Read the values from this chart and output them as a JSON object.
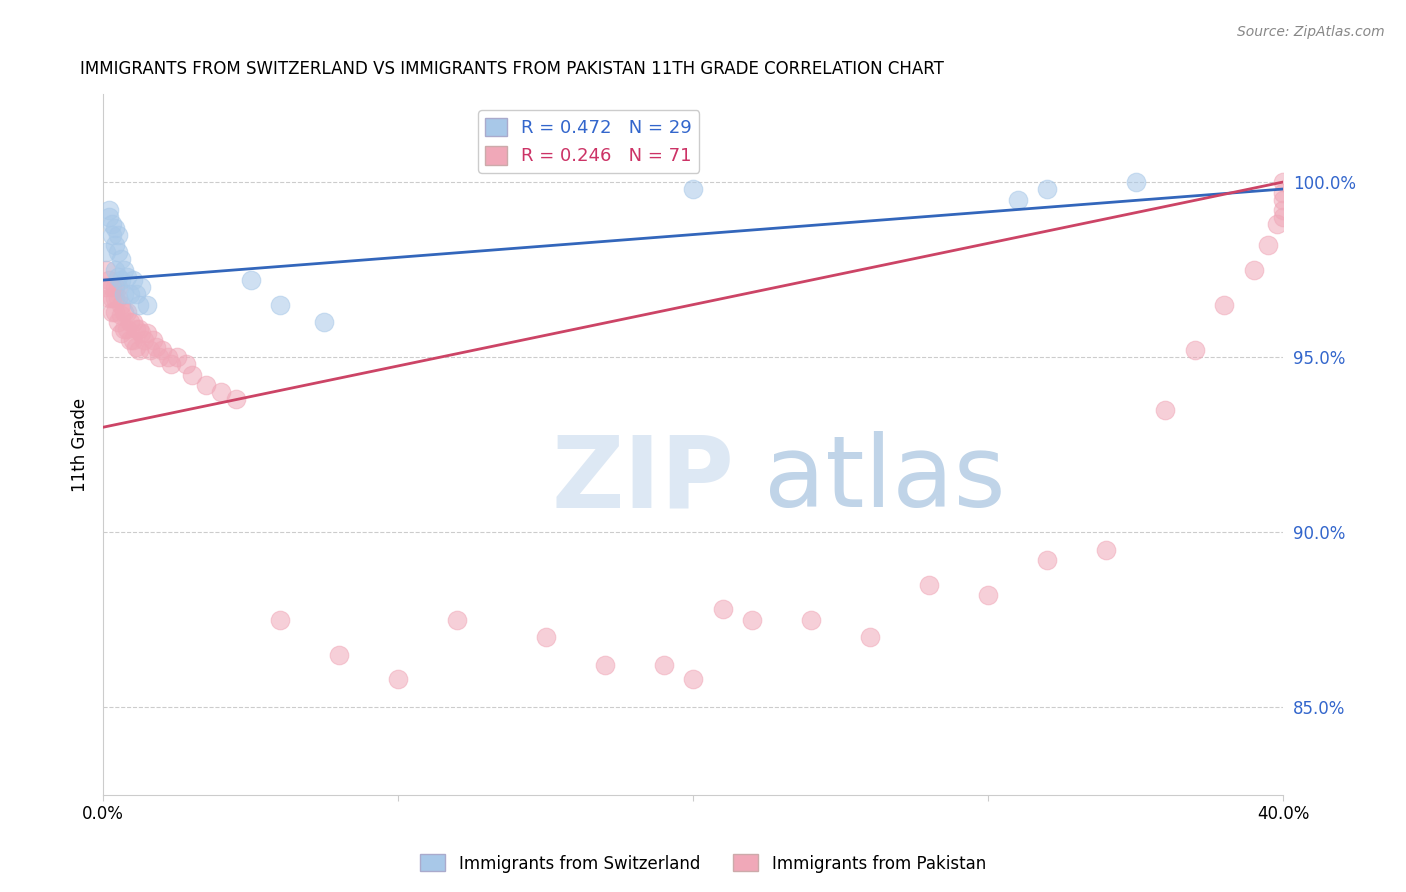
{
  "title": "IMMIGRANTS FROM SWITZERLAND VS IMMIGRANTS FROM PAKISTAN 11TH GRADE CORRELATION CHART",
  "source": "Source: ZipAtlas.com",
  "ylabel": "11th Grade",
  "ytick_labels": [
    "100.0%",
    "95.0%",
    "90.0%",
    "85.0%"
  ],
  "ytick_values": [
    1.0,
    0.95,
    0.9,
    0.85
  ],
  "xlim": [
    0.0,
    0.4
  ],
  "ylim": [
    0.825,
    1.025
  ],
  "legend1_label": "R = 0.472   N = 29",
  "legend2_label": "R = 0.246   N = 71",
  "blue_color": "#a8c8e8",
  "pink_color": "#f0a8b8",
  "blue_line_color": "#3366bb",
  "pink_line_color": "#cc4466",
  "blue_scatter_x": [
    0.001,
    0.002,
    0.002,
    0.003,
    0.003,
    0.004,
    0.004,
    0.004,
    0.005,
    0.005,
    0.005,
    0.006,
    0.006,
    0.007,
    0.007,
    0.008,
    0.009,
    0.01,
    0.011,
    0.012,
    0.013,
    0.015,
    0.05,
    0.06,
    0.075,
    0.2,
    0.31,
    0.32,
    0.35
  ],
  "blue_scatter_y": [
    0.98,
    0.99,
    0.992,
    0.988,
    0.985,
    0.987,
    0.982,
    0.975,
    0.985,
    0.98,
    0.973,
    0.978,
    0.972,
    0.975,
    0.968,
    0.973,
    0.968,
    0.972,
    0.968,
    0.965,
    0.97,
    0.965,
    0.972,
    0.965,
    0.96,
    0.998,
    0.995,
    0.998,
    1.0
  ],
  "pink_scatter_x": [
    0.001,
    0.001,
    0.002,
    0.002,
    0.003,
    0.003,
    0.003,
    0.004,
    0.004,
    0.004,
    0.005,
    0.005,
    0.005,
    0.006,
    0.006,
    0.006,
    0.007,
    0.007,
    0.008,
    0.008,
    0.009,
    0.009,
    0.01,
    0.01,
    0.011,
    0.011,
    0.012,
    0.012,
    0.013,
    0.014,
    0.015,
    0.016,
    0.017,
    0.018,
    0.019,
    0.02,
    0.022,
    0.023,
    0.025,
    0.028,
    0.03,
    0.035,
    0.04,
    0.045,
    0.06,
    0.08,
    0.1,
    0.12,
    0.15,
    0.17,
    0.19,
    0.2,
    0.21,
    0.22,
    0.24,
    0.26,
    0.28,
    0.3,
    0.32,
    0.34,
    0.36,
    0.37,
    0.38,
    0.39,
    0.395,
    0.398,
    0.4,
    0.4,
    0.4,
    0.4,
    0.4
  ],
  "pink_scatter_y": [
    0.975,
    0.97,
    0.972,
    0.967,
    0.97,
    0.967,
    0.963,
    0.97,
    0.967,
    0.963,
    0.97,
    0.967,
    0.96,
    0.965,
    0.962,
    0.957,
    0.963,
    0.958,
    0.963,
    0.958,
    0.96,
    0.955,
    0.96,
    0.955,
    0.958,
    0.953,
    0.958,
    0.952,
    0.957,
    0.955,
    0.957,
    0.952,
    0.955,
    0.953,
    0.95,
    0.952,
    0.95,
    0.948,
    0.95,
    0.948,
    0.945,
    0.942,
    0.94,
    0.938,
    0.875,
    0.865,
    0.858,
    0.875,
    0.87,
    0.862,
    0.862,
    0.858,
    0.878,
    0.875,
    0.875,
    0.87,
    0.885,
    0.882,
    0.892,
    0.895,
    0.935,
    0.952,
    0.965,
    0.975,
    0.982,
    0.988,
    0.99,
    0.992,
    0.995,
    0.997,
    1.0
  ],
  "blue_line_x": [
    0.0,
    0.4
  ],
  "blue_line_y": [
    0.972,
    0.998
  ],
  "pink_line_x": [
    0.0,
    0.4
  ],
  "pink_line_y": [
    0.93,
    1.0
  ]
}
